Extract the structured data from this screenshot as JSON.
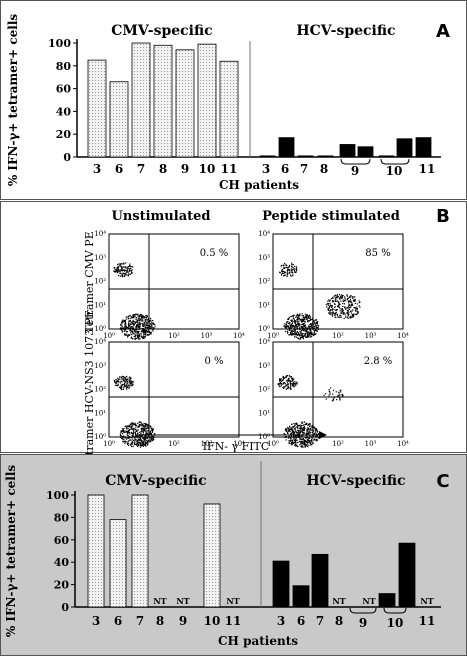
{
  "panels": [
    {
      "letter": "A",
      "ylabel": "% IFN-γ+ tetramer+ cells",
      "xlabel": "CH patients",
      "cmv_title": "CMV-specific",
      "hcv_title": "HCV-specific"
    },
    {
      "letter": "B",
      "col_unstim": "Unstimulated",
      "col_stim": "Peptide stimulated",
      "row1_label": "Tetramer CMV PE",
      "row2_label": "Tetramer HCV-NS3 1073 PE",
      "xaxis_label": "IFN- γ FITC",
      "percentages": [
        "0.5 %",
        "85 %",
        "0 %",
        "2.8 %"
      ],
      "tick_labels": [
        "10⁰",
        "10¹",
        "10²",
        "10³",
        "10⁴"
      ]
    },
    {
      "letter": "C",
      "ylabel": "% IFN-γ+ tetramer+ cells",
      "xlabel": "CH patients",
      "cmv_title": "CMV-specific",
      "hcv_title": "HCV-specific",
      "nt_label": "NT"
    }
  ],
  "chart_data": [
    {
      "type": "bar",
      "panel": "A",
      "yticks": [
        0,
        20,
        40,
        60,
        80,
        100
      ],
      "ylim": [
        0,
        100
      ],
      "series": [
        {
          "name": "CMV-specific",
          "categories": [
            "3",
            "6",
            "7",
            "8",
            "9",
            "10",
            "11"
          ],
          "values": [
            85,
            66,
            100,
            98,
            94,
            99,
            84
          ],
          "color": "#efefef"
        },
        {
          "name": "HCV-specific",
          "categories": [
            "3",
            "6",
            "7",
            "8",
            "9",
            "9",
            "10",
            "10",
            "11"
          ],
          "values": [
            1,
            17,
            1,
            1,
            11,
            9,
            1,
            16,
            17
          ],
          "color": "#000000"
        }
      ]
    },
    {
      "type": "bar",
      "panel": "C",
      "yticks": [
        0,
        20,
        40,
        60,
        80,
        100
      ],
      "ylim": [
        0,
        100
      ],
      "series": [
        {
          "name": "CMV-specific",
          "categories": [
            "3",
            "6",
            "7",
            "8",
            "9",
            "10",
            "11"
          ],
          "values": [
            100,
            78,
            100,
            null,
            null,
            92,
            null
          ],
          "color": "#efefef"
        },
        {
          "name": "HCV-specific",
          "categories": [
            "3",
            "6",
            "7",
            "8",
            "9",
            "10",
            "10",
            "11"
          ],
          "values": [
            41,
            19,
            47,
            null,
            null,
            12,
            57,
            null
          ],
          "color": "#000000"
        }
      ]
    }
  ]
}
